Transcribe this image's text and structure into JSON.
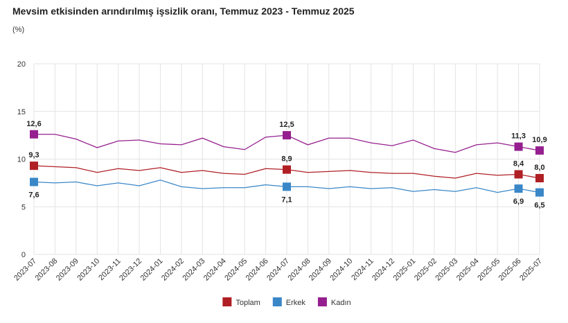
{
  "chart_data": {
    "type": "line",
    "title": "Mevsim etkisinden arındırılmış işsizlik oranı, Temmuz 2023 - Temmuz 2025",
    "y_label": "(%)",
    "categories": [
      "2023-07",
      "2023-08",
      "2023-09",
      "2023-10",
      "2023-11",
      "2023-12",
      "2024-01",
      "2024-02",
      "2024-03",
      "2024-04",
      "2024-05",
      "2024-06",
      "2024-07",
      "2024-08",
      "2024-09",
      "2024-10",
      "2024-11",
      "2024-12",
      "2025-01",
      "2025-02",
      "2025-03",
      "2025-04",
      "2025-05",
      "2025-06",
      "2025-07"
    ],
    "series": [
      {
        "name": "Toplam",
        "color": "#b01f24",
        "values": [
          9.3,
          9.2,
          9.1,
          8.6,
          9.0,
          8.8,
          9.1,
          8.6,
          8.8,
          8.5,
          8.4,
          9.0,
          8.9,
          8.6,
          8.7,
          8.8,
          8.6,
          8.5,
          8.5,
          8.2,
          8.0,
          8.5,
          8.3,
          8.4,
          8.0
        ],
        "value_labels": [
          "9,3",
          null,
          null,
          null,
          null,
          null,
          null,
          null,
          null,
          null,
          null,
          null,
          "8,9",
          null,
          null,
          null,
          null,
          null,
          null,
          null,
          null,
          null,
          null,
          "8,4",
          "8,0"
        ]
      },
      {
        "name": "Erkek",
        "color": "#3a87c8",
        "values": [
          7.6,
          7.5,
          7.6,
          7.2,
          7.5,
          7.2,
          7.8,
          7.1,
          6.9,
          7.0,
          7.0,
          7.3,
          7.1,
          7.1,
          6.9,
          7.1,
          6.9,
          7.0,
          6.6,
          6.8,
          6.6,
          7.0,
          6.5,
          6.9,
          6.5
        ],
        "value_labels": [
          "7,6",
          null,
          null,
          null,
          null,
          null,
          null,
          null,
          null,
          null,
          null,
          null,
          "7,1",
          null,
          null,
          null,
          null,
          null,
          null,
          null,
          null,
          null,
          null,
          "6,9",
          "6,5"
        ]
      },
      {
        "name": "Kadın",
        "color": "#951f8e",
        "values": [
          12.6,
          12.6,
          12.1,
          11.2,
          11.9,
          12.0,
          11.6,
          11.5,
          12.2,
          11.3,
          11.0,
          12.3,
          12.5,
          11.5,
          12.2,
          12.2,
          11.7,
          11.4,
          12.0,
          11.1,
          10.7,
          11.5,
          11.7,
          11.3,
          10.9
        ],
        "value_labels": [
          "12,6",
          null,
          null,
          null,
          null,
          null,
          null,
          null,
          null,
          null,
          null,
          null,
          "12,5",
          null,
          null,
          null,
          null,
          null,
          null,
          null,
          null,
          null,
          null,
          "11,3",
          "10,9"
        ]
      }
    ],
    "ylim": [
      0,
      20
    ],
    "yticks": [
      0,
      5,
      10,
      15,
      20
    ],
    "grid": true,
    "legend": "bottom"
  }
}
